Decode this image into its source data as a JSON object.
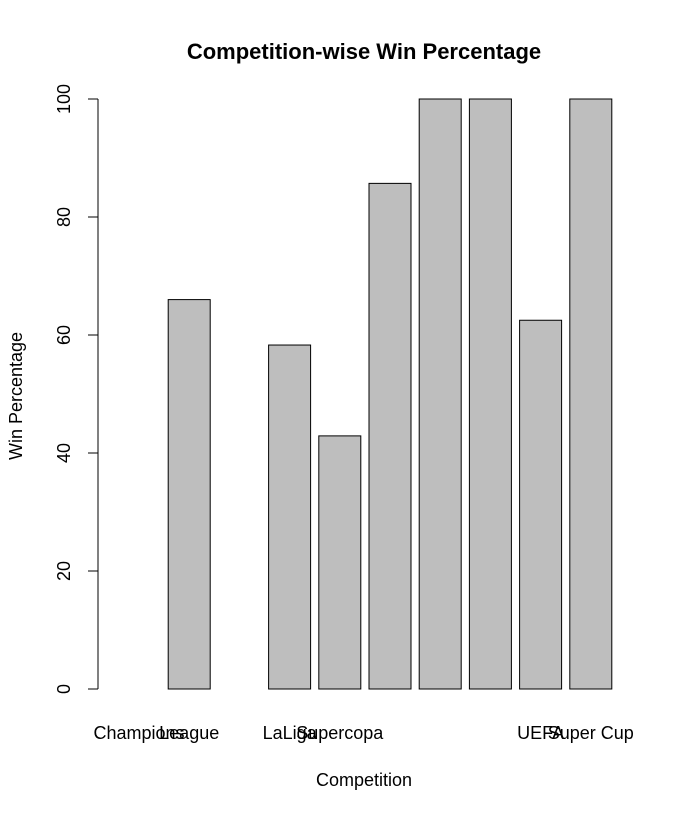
{
  "chart_data": {
    "type": "bar",
    "title": "Competition-wise Win Percentage",
    "xlabel": "Competition",
    "ylabel": "Win Percentage",
    "ylim": [
      0,
      100
    ],
    "yticks": [
      0,
      20,
      40,
      60,
      80,
      100
    ],
    "grid": false,
    "categories": [
      "Champions",
      "League",
      "",
      "LaLiga",
      "Supercopa",
      "",
      "",
      "",
      "UEFA",
      "Super Cup"
    ],
    "values": [
      0,
      66,
      0,
      58.3,
      42.9,
      85.7,
      100,
      100,
      62.5,
      100
    ],
    "bar_color": "#bebebe",
    "bar_stroke": "#000000"
  }
}
